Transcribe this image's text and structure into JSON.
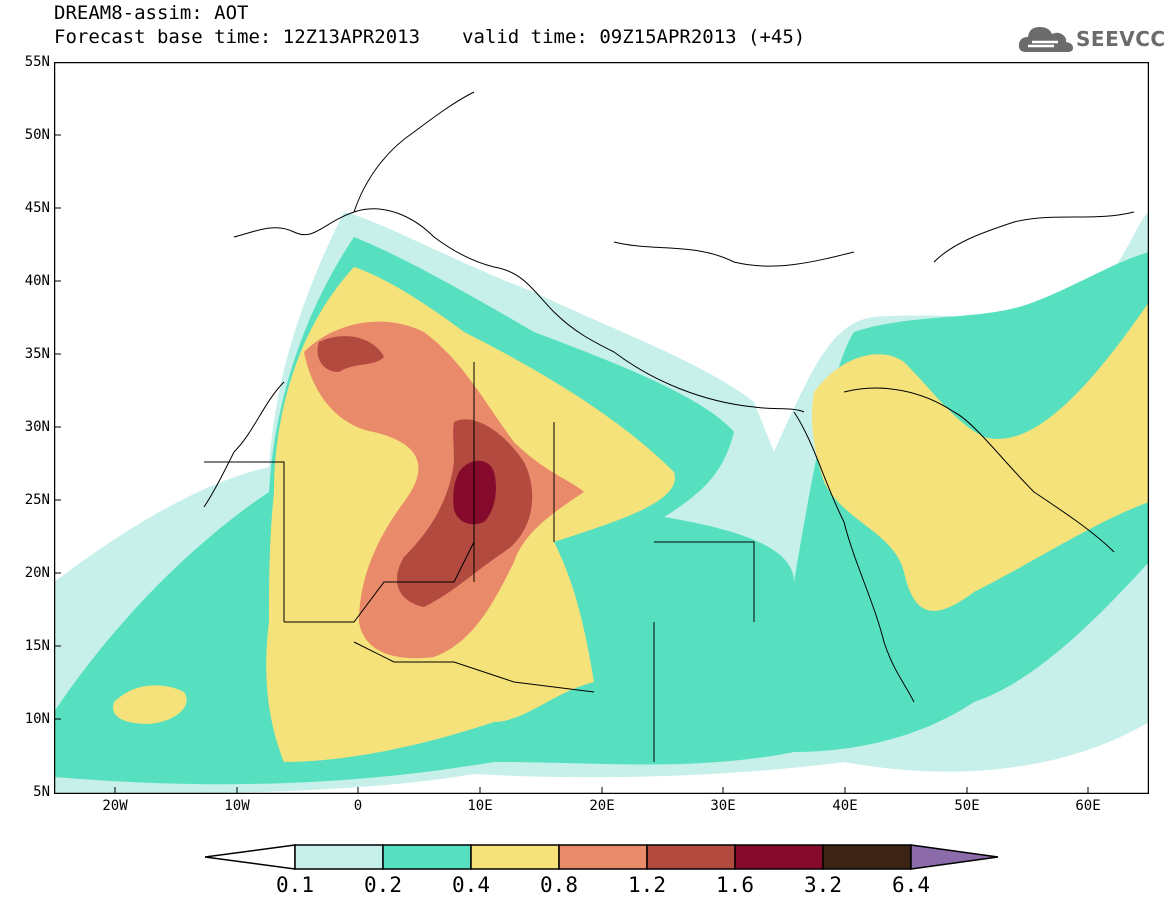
{
  "header": {
    "model_line": "DREAM8-assim: AOT",
    "base_time": "Forecast base time: 12Z13APR2013",
    "valid_time": "valid time: 09Z15APR2013 (+45)"
  },
  "logo": {
    "text": "SEEVCCC",
    "icon": "cloud-icon",
    "color": "#6b6b6b"
  },
  "map": {
    "region": "North Africa, Mediterranean, Middle East",
    "lat_labels": [
      "55N",
      "50N",
      "45N",
      "40N",
      "35N",
      "30N",
      "25N",
      "20N",
      "15N",
      "10N",
      "5N"
    ],
    "lon_labels": [
      "20W",
      "10W",
      "0",
      "10E",
      "20E",
      "30E",
      "40E",
      "50E",
      "60E"
    ]
  },
  "legend": {
    "labels": [
      "0.1",
      "0.2",
      "0.4",
      "0.8",
      "1.2",
      "1.6",
      "3.2",
      "6.4"
    ],
    "colors": [
      "#ffffff",
      "#c7f0ea",
      "#57e0bf",
      "#f5e27a",
      "#e98a6a",
      "#b24a3f",
      "#850a2c",
      "#3b2414",
      "#8b6ba9"
    ]
  }
}
